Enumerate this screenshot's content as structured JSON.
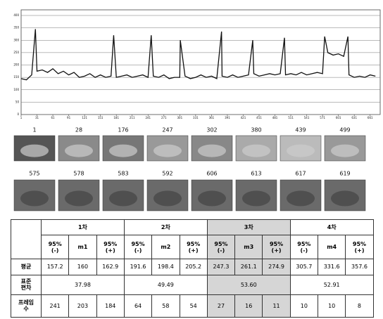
{
  "chart_data": {
    "type": "line",
    "x": [
      1,
      11,
      21,
      28,
      31,
      41,
      51,
      61,
      71,
      81,
      91,
      101,
      111,
      121,
      131,
      141,
      151,
      161,
      171,
      176,
      181,
      191,
      201,
      211,
      221,
      231,
      241,
      247,
      251,
      261,
      271,
      281,
      291,
      301,
      302,
      311,
      321,
      331,
      341,
      351,
      361,
      371,
      380,
      381,
      391,
      401,
      411,
      421,
      431,
      439,
      441,
      451,
      461,
      471,
      481,
      491,
      499,
      501,
      511,
      521,
      531,
      541,
      551,
      561,
      571,
      575,
      581,
      591,
      601,
      611,
      619,
      621,
      631,
      641,
      651,
      661,
      671
    ],
    "series": [
      {
        "color": "#111111",
        "values": [
          145,
          140,
          160,
          345,
          175,
          180,
          170,
          185,
          165,
          175,
          160,
          170,
          150,
          155,
          165,
          150,
          160,
          150,
          155,
          320,
          150,
          155,
          160,
          150,
          155,
          160,
          150,
          320,
          155,
          150,
          160,
          145,
          150,
          150,
          300,
          155,
          145,
          150,
          160,
          150,
          155,
          145,
          335,
          155,
          150,
          160,
          150,
          155,
          160,
          300,
          165,
          155,
          160,
          165,
          160,
          165,
          310,
          160,
          165,
          160,
          170,
          160,
          165,
          170,
          165,
          315,
          250,
          240,
          245,
          235,
          315,
          160,
          150,
          155,
          150,
          160,
          155
        ]
      }
    ],
    "xlim": [
      1,
      680
    ],
    "ylim": [
      0,
      400
    ],
    "xticks": [
      1,
      31,
      61,
      91,
      121,
      151,
      181,
      211,
      241,
      271,
      301,
      331,
      361,
      391,
      421,
      451,
      481,
      511,
      541,
      571,
      601,
      631,
      661
    ],
    "yticks": [
      0,
      50,
      100,
      150,
      200,
      250,
      300,
      350,
      400
    ],
    "grid": true
  },
  "frames": [
    1,
    28,
    176,
    247,
    302,
    380,
    439,
    499,
    575,
    578,
    583,
    592,
    606,
    613,
    617,
    619
  ],
  "table": {
    "groups": [
      "1차",
      "2차",
      "3차",
      "4차"
    ],
    "subheaders": [
      "95%\n(-)",
      "m1",
      "95%\n(+)",
      "95%\n(-)",
      "m2",
      "95%\n(+)",
      "95%\n(-)",
      "m3",
      "95%\n(+)",
      "95%\n(-)",
      "m4",
      "95%\n(+)"
    ],
    "rows": [
      {
        "label": "평균",
        "cells": [
          157.2,
          160,
          162.9,
          191.6,
          198.4,
          205.2,
          247.3,
          261.1,
          274.9,
          305.7,
          331.6,
          357.6
        ]
      },
      {
        "label": "표준\n편차",
        "cells": [
          37.98,
          49.49,
          "53.60",
          52.91
        ]
      },
      {
        "label": "프레임\n수",
        "cells": [
          241,
          203,
          184,
          64,
          58,
          54,
          27,
          16,
          11,
          10,
          10,
          8
        ]
      }
    ],
    "highlight_group": 2
  }
}
